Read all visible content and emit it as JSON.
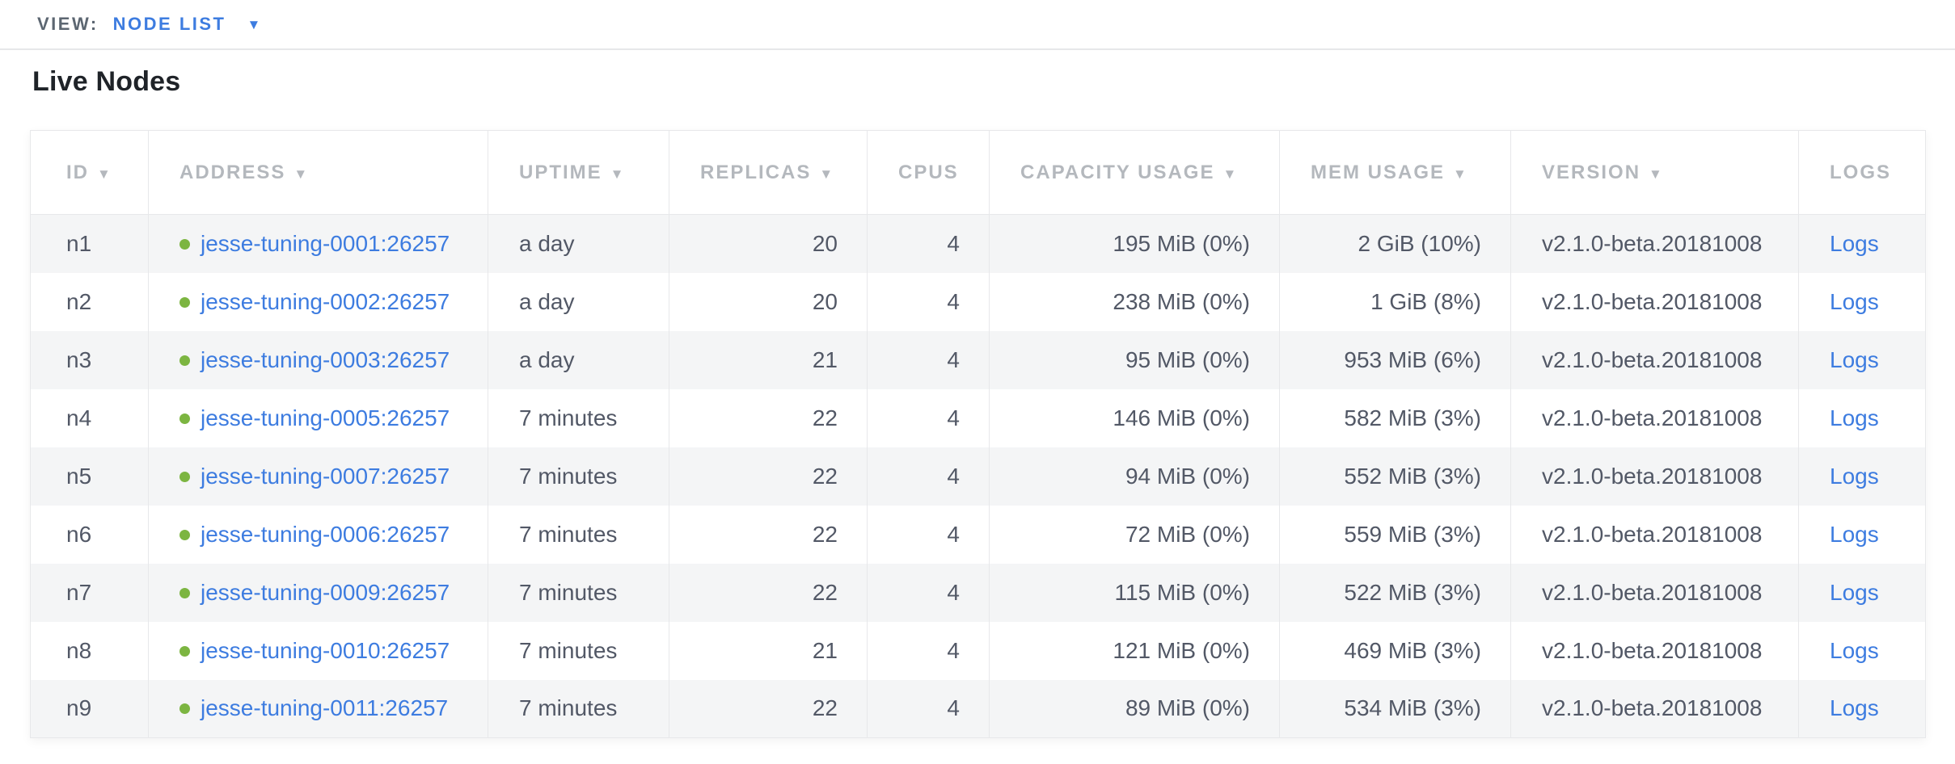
{
  "view_bar": {
    "label": "VIEW:",
    "selected": "NODE LIST",
    "caret_icon": "▼"
  },
  "page": {
    "title": "Live Nodes"
  },
  "table": {
    "sort_icon": "▼",
    "columns": [
      {
        "key": "id",
        "label": "ID",
        "sortable": true
      },
      {
        "key": "address",
        "label": "ADDRESS",
        "sortable": true
      },
      {
        "key": "uptime",
        "label": "UPTIME",
        "sortable": true
      },
      {
        "key": "replicas",
        "label": "REPLICAS",
        "sortable": true
      },
      {
        "key": "cpus",
        "label": "CPUS",
        "sortable": false
      },
      {
        "key": "capacity",
        "label": "CAPACITY USAGE",
        "sortable": true
      },
      {
        "key": "mem",
        "label": "MEM USAGE",
        "sortable": true
      },
      {
        "key": "version",
        "label": "VERSION",
        "sortable": true
      },
      {
        "key": "logs",
        "label": "LOGS",
        "sortable": false
      }
    ],
    "rows": [
      {
        "id": "n1",
        "status": "live",
        "address": "jesse-tuning-0001:26257",
        "uptime": "a day",
        "replicas": "20",
        "cpus": "4",
        "capacity": "195 MiB (0%)",
        "mem": "2 GiB (10%)",
        "version": "v2.1.0-beta.20181008",
        "logs": "Logs"
      },
      {
        "id": "n2",
        "status": "live",
        "address": "jesse-tuning-0002:26257",
        "uptime": "a day",
        "replicas": "20",
        "cpus": "4",
        "capacity": "238 MiB (0%)",
        "mem": "1 GiB (8%)",
        "version": "v2.1.0-beta.20181008",
        "logs": "Logs"
      },
      {
        "id": "n3",
        "status": "live",
        "address": "jesse-tuning-0003:26257",
        "uptime": "a day",
        "replicas": "21",
        "cpus": "4",
        "capacity": "95 MiB (0%)",
        "mem": "953 MiB (6%)",
        "version": "v2.1.0-beta.20181008",
        "logs": "Logs"
      },
      {
        "id": "n4",
        "status": "live",
        "address": "jesse-tuning-0005:26257",
        "uptime": "7 minutes",
        "replicas": "22",
        "cpus": "4",
        "capacity": "146 MiB (0%)",
        "mem": "582 MiB (3%)",
        "version": "v2.1.0-beta.20181008",
        "logs": "Logs"
      },
      {
        "id": "n5",
        "status": "live",
        "address": "jesse-tuning-0007:26257",
        "uptime": "7 minutes",
        "replicas": "22",
        "cpus": "4",
        "capacity": "94 MiB (0%)",
        "mem": "552 MiB (3%)",
        "version": "v2.1.0-beta.20181008",
        "logs": "Logs"
      },
      {
        "id": "n6",
        "status": "live",
        "address": "jesse-tuning-0006:26257",
        "uptime": "7 minutes",
        "replicas": "22",
        "cpus": "4",
        "capacity": "72 MiB (0%)",
        "mem": "559 MiB (3%)",
        "version": "v2.1.0-beta.20181008",
        "logs": "Logs"
      },
      {
        "id": "n7",
        "status": "live",
        "address": "jesse-tuning-0009:26257",
        "uptime": "7 minutes",
        "replicas": "22",
        "cpus": "4",
        "capacity": "115 MiB (0%)",
        "mem": "522 MiB (3%)",
        "version": "v2.1.0-beta.20181008",
        "logs": "Logs"
      },
      {
        "id": "n8",
        "status": "live",
        "address": "jesse-tuning-0010:26257",
        "uptime": "7 minutes",
        "replicas": "21",
        "cpus": "4",
        "capacity": "121 MiB (0%)",
        "mem": "469 MiB (3%)",
        "version": "v2.1.0-beta.20181008",
        "logs": "Logs"
      },
      {
        "id": "n9",
        "status": "live",
        "address": "jesse-tuning-0011:26257",
        "uptime": "7 minutes",
        "replicas": "22",
        "cpus": "4",
        "capacity": "89 MiB (0%)",
        "mem": "534 MiB (3%)",
        "version": "v2.1.0-beta.20181008",
        "logs": "Logs"
      }
    ]
  },
  "colors": {
    "accent_blue": "#3d7ce0",
    "live_green": "#7cb541",
    "header_gray": "#b4b8bd",
    "text_dark": "#525866",
    "row_stripe": "#f4f5f6",
    "border": "#e7e8ea"
  }
}
